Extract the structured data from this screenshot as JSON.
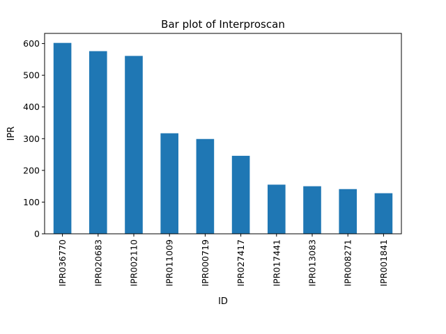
{
  "chart_data": {
    "type": "bar",
    "title": "Bar plot of Interproscan",
    "xlabel": "ID",
    "ylabel": "IPR",
    "categories": [
      "IPR036770",
      "IPR020683",
      "IPR002110",
      "IPR011009",
      "IPR000719",
      "IPR027417",
      "IPR017441",
      "IPR013083",
      "IPR008271",
      "IPR001841"
    ],
    "values": [
      602,
      576,
      561,
      317,
      299,
      246,
      155,
      150,
      141,
      128
    ],
    "ylim": [
      0,
      632
    ],
    "yticks": [
      0,
      100,
      200,
      300,
      400,
      500,
      600
    ],
    "grid": false,
    "bar_color": "#1f77b4"
  }
}
